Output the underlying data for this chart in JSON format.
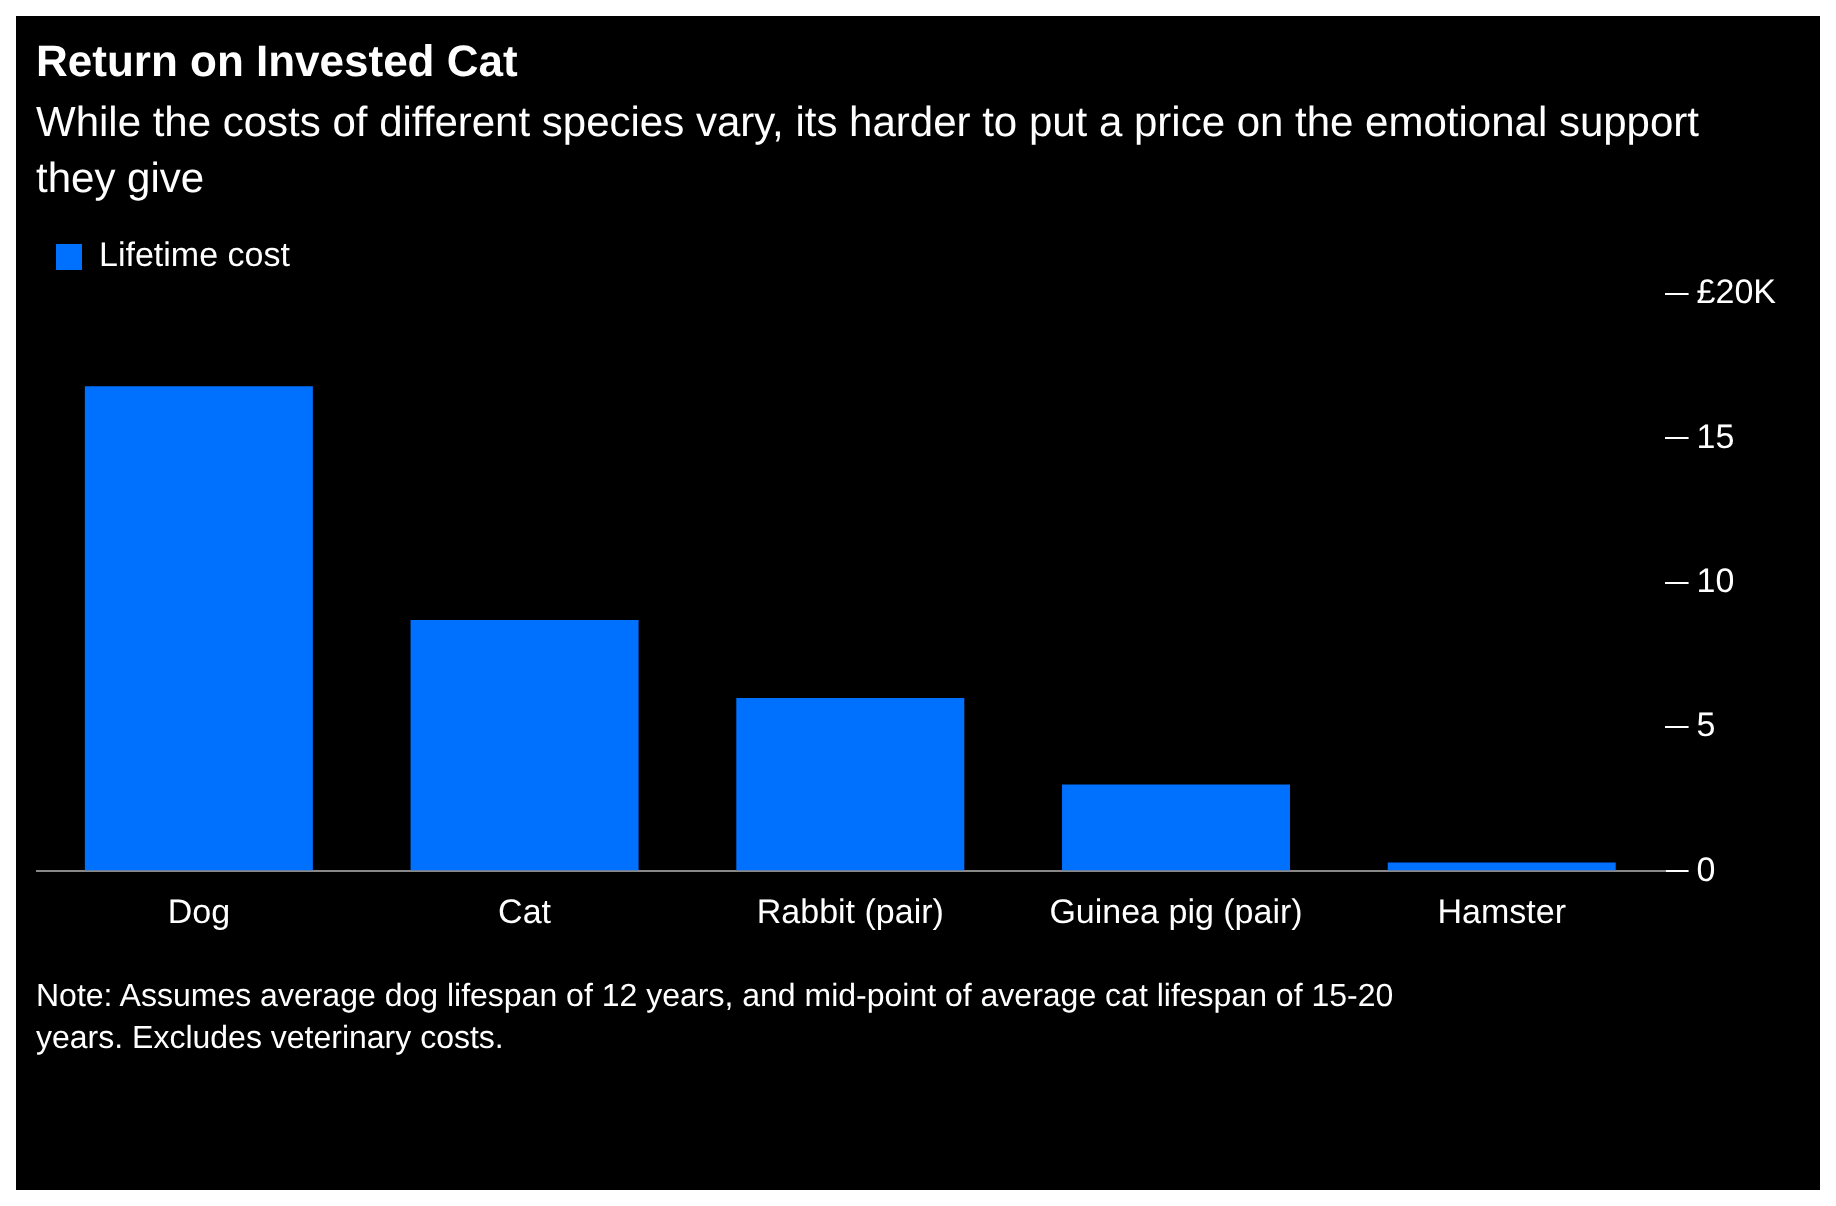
{
  "chart_data": {
    "type": "bar",
    "title": "Return on Invested Cat",
    "subtitle": "While the costs of different species vary, its harder to put a price on the emotional support they give",
    "categories": [
      "Dog",
      "Cat",
      "Rabbit (pair)",
      "Guinea pig (pair)",
      "Hamster"
    ],
    "series": [
      {
        "name": "Lifetime cost",
        "color": "#0070ff",
        "values": [
          16.8,
          8.7,
          6.0,
          3.0,
          0.3
        ]
      }
    ],
    "ylim": [
      0,
      20
    ],
    "yticks": [
      0,
      5,
      10,
      15,
      {
        "value": 20,
        "label": "£20K"
      }
    ],
    "grid": false,
    "legend": "top left",
    "annotations": [
      "Note: Assumes average dog lifespan of 12 years, and mid-point of average cat lifespan of 15-20 years. Excludes veterinary costs."
    ]
  }
}
